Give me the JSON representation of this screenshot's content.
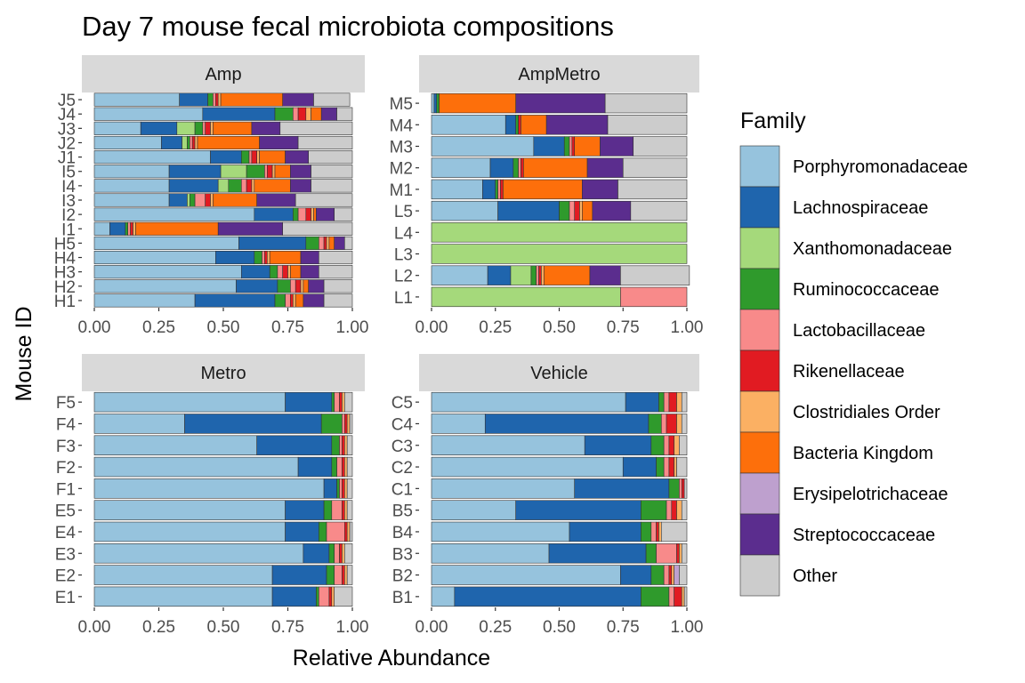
{
  "title": "Day 7 mouse fecal microbiota compositions",
  "xlabel": "Relative Abundance",
  "ylabel": "Mouse ID",
  "legend": {
    "title": "Family",
    "placement": "right",
    "entries": [
      {
        "name": "Porphyromonadaceae",
        "color": "#96c3dd"
      },
      {
        "name": "Lachnospiraceae",
        "color": "#1f65ad"
      },
      {
        "name": "Xanthomonadaceae",
        "color": "#a5d97b"
      },
      {
        "name": "Ruminococcaceae",
        "color": "#2f9a2c"
      },
      {
        "name": "Lactobacillaceae",
        "color": "#f88a8a"
      },
      {
        "name": "Rikenellaceae",
        "color": "#e11b22"
      },
      {
        "name": "Clostridiales Order",
        "color": "#fbb063"
      },
      {
        "name": "Bacteria Kingdom",
        "color": "#fd6f0b"
      },
      {
        "name": "Erysipelotrichaceae",
        "color": "#bea0ce"
      },
      {
        "name": "Streptococcaceae",
        "color": "#5b2d8e"
      },
      {
        "name": "Other",
        "color": "#cccccc"
      }
    ]
  },
  "chart_data": {
    "type": "bar",
    "orientation": "horizontal",
    "stacked": true,
    "xlim": [
      0,
      1
    ],
    "xticks": [
      "0.00",
      "0.25",
      "0.50",
      "0.75",
      "1.00"
    ],
    "facets": [
      {
        "panel": "Amp",
        "categories": [
          "H1",
          "H2",
          "H3",
          "H4",
          "H5",
          "I1",
          "I2",
          "I3",
          "I4",
          "I5",
          "J1",
          "J2",
          "J3",
          "J4",
          "J5"
        ],
        "rows": [
          [
            0.39,
            0.31,
            0,
            0.04,
            0.02,
            0.01,
            0.01,
            0.03,
            0,
            0.08,
            0.11
          ],
          [
            0.55,
            0.16,
            0,
            0.05,
            0.02,
            0.02,
            0.01,
            0.02,
            0,
            0.06,
            0.11
          ],
          [
            0.57,
            0.11,
            0,
            0.03,
            0.02,
            0.02,
            0.01,
            0.04,
            0,
            0.07,
            0.13
          ],
          [
            0.47,
            0.15,
            0,
            0.03,
            0.01,
            0.01,
            0.01,
            0.12,
            0,
            0.07,
            0.13
          ],
          [
            0.56,
            0.26,
            0,
            0.05,
            0.02,
            0.01,
            0.01,
            0.02,
            0,
            0.04,
            0.03
          ],
          [
            0.06,
            0.06,
            0,
            0.01,
            0.01,
            0.01,
            0.01,
            0.32,
            0,
            0.25,
            0.27
          ],
          [
            0.62,
            0.15,
            0,
            0.02,
            0.03,
            0.02,
            0.01,
            0.01,
            0,
            0.07,
            0.07
          ],
          [
            0.29,
            0.07,
            0.01,
            0.02,
            0.04,
            0.02,
            0.01,
            0.17,
            0,
            0.15,
            0.22
          ],
          [
            0.29,
            0.19,
            0.04,
            0.05,
            0.02,
            0.02,
            0.01,
            0.14,
            0,
            0.08,
            0.16
          ],
          [
            0.29,
            0.2,
            0.1,
            0.07,
            0.01,
            0.02,
            0.01,
            0.06,
            0,
            0.08,
            0.16
          ],
          [
            0.45,
            0.12,
            0,
            0.03,
            0.01,
            0.02,
            0.01,
            0.1,
            0,
            0.09,
            0.17
          ],
          [
            0.26,
            0.08,
            0.02,
            0.01,
            0.01,
            0.01,
            0.01,
            0.24,
            0,
            0.15,
            0.21
          ],
          [
            0.18,
            0.14,
            0.07,
            0.03,
            0.01,
            0.02,
            0.01,
            0.15,
            0,
            0.11,
            0.28
          ],
          [
            0.42,
            0.28,
            0,
            0.07,
            0.02,
            0.03,
            0.02,
            0.04,
            0,
            0.06,
            0.06
          ],
          [
            0.33,
            0.11,
            0,
            0.02,
            0.01,
            0.01,
            0.01,
            0.24,
            0,
            0.12,
            0.14
          ]
        ]
      },
      {
        "panel": "AmpMetro",
        "categories": [
          "L1",
          "L2",
          "L3",
          "L4",
          "L5",
          "M1",
          "M2",
          "M3",
          "M4",
          "M5"
        ],
        "rows": [
          [
            0,
            0,
            0.74,
            0,
            0.26,
            0,
            0,
            0,
            0,
            0,
            0
          ],
          [
            0.22,
            0.09,
            0.08,
            0.02,
            0.01,
            0.01,
            0.01,
            0.18,
            0,
            0.12,
            0.27
          ],
          [
            0,
            0,
            1.0,
            0,
            0,
            0,
            0,
            0,
            0,
            0,
            0
          ],
          [
            0,
            0,
            1.0,
            0,
            0,
            0,
            0,
            0,
            0,
            0,
            0
          ],
          [
            0.26,
            0.24,
            0,
            0.04,
            0.02,
            0.02,
            0.01,
            0.04,
            0,
            0.15,
            0.22
          ],
          [
            0.2,
            0.05,
            0,
            0.01,
            0.01,
            0.01,
            0,
            0.31,
            0,
            0.14,
            0.27
          ],
          [
            0.23,
            0.09,
            0,
            0.02,
            0.01,
            0.01,
            0,
            0.25,
            0,
            0.14,
            0.25
          ],
          [
            0.4,
            0.12,
            0,
            0.02,
            0.01,
            0.01,
            0,
            0.1,
            0,
            0.13,
            0.21
          ],
          [
            0.29,
            0.04,
            0,
            0.01,
            0,
            0.01,
            0,
            0.1,
            0,
            0.24,
            0.31
          ],
          [
            0.01,
            0.01,
            0,
            0.01,
            0,
            0,
            0,
            0.3,
            0,
            0.35,
            0.32
          ]
        ]
      },
      {
        "panel": "Metro",
        "categories": [
          "E1",
          "E2",
          "E3",
          "E4",
          "E5",
          "F1",
          "F2",
          "F3",
          "F4",
          "F5"
        ],
        "rows": [
          [
            0.69,
            0.17,
            0,
            0.01,
            0.04,
            0.01,
            0.01,
            0,
            0,
            0,
            0.07
          ],
          [
            0.69,
            0.21,
            0,
            0.03,
            0.03,
            0.01,
            0.01,
            0,
            0,
            0,
            0.02
          ],
          [
            0.81,
            0.1,
            0,
            0.02,
            0.02,
            0.01,
            0.01,
            0,
            0,
            0,
            0.03
          ],
          [
            0.74,
            0.13,
            0,
            0.03,
            0.07,
            0.01,
            0.01,
            0,
            0,
            0,
            0.01
          ],
          [
            0.74,
            0.15,
            0,
            0.03,
            0.04,
            0.01,
            0.01,
            0,
            0,
            0,
            0.02
          ],
          [
            0.89,
            0.05,
            0,
            0.01,
            0.01,
            0.01,
            0.01,
            0,
            0,
            0,
            0.02
          ],
          [
            0.79,
            0.13,
            0,
            0.02,
            0.02,
            0.01,
            0.01,
            0,
            0,
            0,
            0.02
          ],
          [
            0.63,
            0.29,
            0,
            0.03,
            0.01,
            0.01,
            0.01,
            0,
            0,
            0,
            0.02
          ],
          [
            0.35,
            0.53,
            0,
            0.08,
            0.01,
            0.01,
            0.01,
            0,
            0,
            0,
            0.01
          ],
          [
            0.74,
            0.18,
            0,
            0.01,
            0.02,
            0.01,
            0.01,
            0,
            0,
            0,
            0.03
          ]
        ]
      },
      {
        "panel": "Vehicle",
        "categories": [
          "B1",
          "B2",
          "B3",
          "B4",
          "B5",
          "C1",
          "C2",
          "C3",
          "C4",
          "C5"
        ],
        "rows": [
          [
            0.09,
            0.73,
            0,
            0.11,
            0.02,
            0.03,
            0.01,
            0,
            0,
            0,
            0.01
          ],
          [
            0.74,
            0.12,
            0,
            0.05,
            0.02,
            0.01,
            0.01,
            0,
            0.02,
            0,
            0.03
          ],
          [
            0.46,
            0.38,
            0,
            0.04,
            0.08,
            0.01,
            0.01,
            0,
            0,
            0,
            0.02
          ],
          [
            0.54,
            0.28,
            0,
            0.04,
            0.02,
            0.01,
            0.01,
            0,
            0,
            0,
            0.1
          ],
          [
            0.33,
            0.49,
            0,
            0.1,
            0.02,
            0.02,
            0.02,
            0,
            0,
            0,
            0.02
          ],
          [
            0.56,
            0.37,
            0,
            0.04,
            0.01,
            0.01,
            0,
            0,
            0,
            0,
            0.01
          ],
          [
            0.75,
            0.13,
            0,
            0.03,
            0.02,
            0.02,
            0.01,
            0,
            0,
            0,
            0.04
          ],
          [
            0.6,
            0.26,
            0,
            0.05,
            0.02,
            0.02,
            0.02,
            0,
            0,
            0,
            0.03
          ],
          [
            0.21,
            0.64,
            0,
            0.05,
            0.02,
            0.04,
            0.02,
            0,
            0,
            0,
            0.02
          ],
          [
            0.76,
            0.13,
            0,
            0.02,
            0.02,
            0.03,
            0.02,
            0,
            0,
            0,
            0.02
          ]
        ]
      }
    ]
  }
}
